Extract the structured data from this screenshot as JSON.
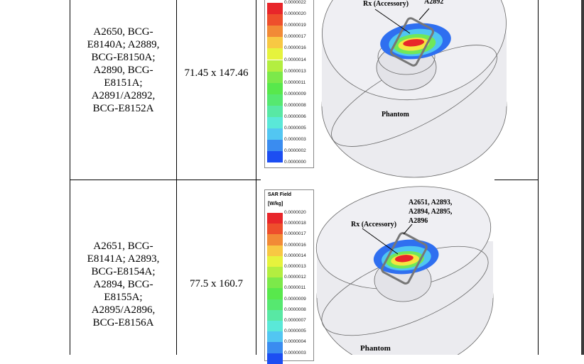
{
  "rows": [
    {
      "models_lines": [
        "A2650, BCG-",
        "E8140A; A2889,",
        "BCG-E8150A;",
        "A2890, BCG-",
        "E8151A;",
        "A2891/A2892,",
        "BCG-E8152A"
      ],
      "dimensions": "71.45 x 147.46",
      "figure": {
        "legend_title": "",
        "legend_unit": "",
        "legend_values": [
          "0.0000022",
          "0.0000020",
          "0.0000019",
          "0.0000017",
          "0.0000016",
          "0.0000014",
          "0.0000013",
          "0.0000011",
          "0.0000009",
          "0.0000008",
          "0.0000006",
          "0.0000005",
          "0.0000003",
          "0.0000002",
          "0.0000000"
        ],
        "rx_label": "Rx (Accessory)",
        "device_label_lines": [
          "A2892"
        ],
        "phantom_label": "Phantom"
      }
    },
    {
      "models_lines": [
        "A2651, BCG-",
        "E8141A; A2893,",
        "BCG-E8154A;",
        "A2894, BCG-",
        "E8155A;",
        "A2895/A2896,",
        "BCG-E8156A"
      ],
      "dimensions": "77.5 x 160.7",
      "figure": {
        "legend_title": "SAR Field",
        "legend_unit": "[W/kg]",
        "legend_values": [
          "0.0000020",
          "0.0000018",
          "0.0000017",
          "0.0000016",
          "0.0000014",
          "0.0000013",
          "0.0000012",
          "0.0000011",
          "0.0000009",
          "0.0000008",
          "0.0000007",
          "0.0000005",
          "0.0000004",
          "0.0000003"
        ],
        "rx_label": "Rx (Accessory)",
        "device_label_lines": [
          "A2651, A2893,",
          "A2894, A2895,",
          "A2896"
        ],
        "phantom_label": "Phantom"
      }
    }
  ],
  "legend_colors": [
    "#e8262a",
    "#ee4f2c",
    "#f28a36",
    "#f8c843",
    "#e6f33d",
    "#b3ee40",
    "#7ce94a",
    "#58e84c",
    "#56e870",
    "#58e8a4",
    "#5ae8d8",
    "#52c6f2",
    "#3a8cf0",
    "#1c4ef2",
    "#0a1ef6"
  ]
}
